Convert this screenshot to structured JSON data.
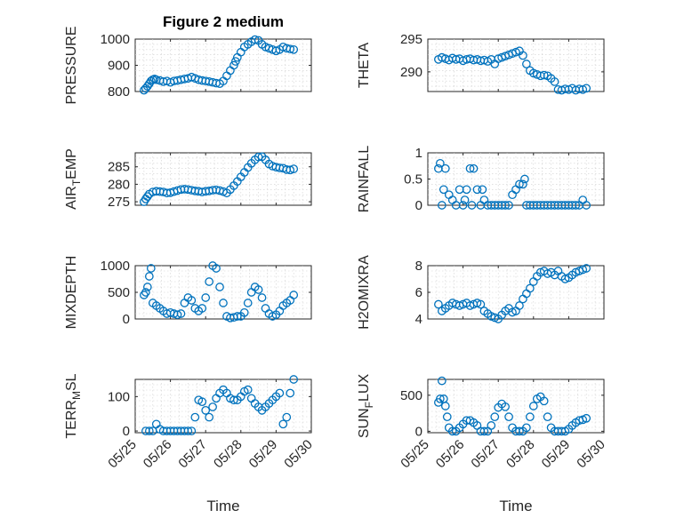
{
  "figure": {
    "title": "Figure 2 medium",
    "marker_color": "#0072bd",
    "x_ticks": [
      "05/25",
      "05/26",
      "05/27",
      "05/28",
      "05/29",
      "05/30"
    ],
    "time_label": "Time"
  },
  "chart_data": [
    {
      "type": "scatter",
      "title": "Figure 2 medium",
      "ylabel": "PRESSURE",
      "xlim": [
        0,
        5
      ],
      "ylim": [
        800,
        1000
      ],
      "yticks": [
        800,
        900,
        1000
      ],
      "grid": true,
      "x_tick_labels": false,
      "x": [
        0.25,
        0.3,
        0.35,
        0.4,
        0.45,
        0.5,
        0.55,
        0.6,
        0.7,
        0.8,
        0.9,
        1.0,
        1.1,
        1.2,
        1.3,
        1.4,
        1.5,
        1.6,
        1.7,
        1.8,
        1.9,
        2.0,
        2.1,
        2.2,
        2.3,
        2.4,
        2.5,
        2.6,
        2.7,
        2.8,
        2.85,
        2.9,
        3.0,
        3.1,
        3.2,
        3.3,
        3.4,
        3.5,
        3.6,
        3.7,
        3.8,
        3.9,
        4.0,
        4.1,
        4.2,
        4.3,
        4.4,
        4.5
      ],
      "y": [
        805,
        812,
        820,
        830,
        840,
        845,
        848,
        845,
        842,
        838,
        840,
        835,
        840,
        842,
        845,
        848,
        850,
        855,
        850,
        845,
        842,
        840,
        838,
        835,
        832,
        830,
        840,
        860,
        880,
        900,
        915,
        930,
        950,
        970,
        980,
        990,
        998,
        995,
        980,
        970,
        965,
        960,
        955,
        960,
        970,
        965,
        962,
        960
      ]
    },
    {
      "type": "scatter",
      "ylabel": "THETA",
      "xlim": [
        0,
        5
      ],
      "ylim": [
        287,
        295
      ],
      "yticks": [
        290,
        295
      ],
      "grid": true,
      "x_tick_labels": false,
      "x": [
        0.3,
        0.4,
        0.5,
        0.6,
        0.7,
        0.8,
        0.9,
        1.0,
        1.1,
        1.2,
        1.3,
        1.4,
        1.5,
        1.6,
        1.7,
        1.8,
        1.9,
        2.0,
        2.1,
        2.2,
        2.3,
        2.4,
        2.5,
        2.6,
        2.7,
        2.8,
        2.9,
        3.0,
        3.1,
        3.2,
        3.3,
        3.4,
        3.5,
        3.6,
        3.7,
        3.8,
        3.9,
        4.0,
        4.1,
        4.2,
        4.3,
        4.4,
        4.5
      ],
      "y": [
        291.9,
        292.2,
        292.0,
        291.8,
        292.1,
        291.9,
        292.0,
        291.7,
        291.9,
        292.0,
        291.8,
        291.9,
        291.7,
        291.8,
        291.6,
        291.9,
        291.2,
        292.0,
        292.2,
        292.4,
        292.6,
        292.8,
        293.0,
        293.2,
        292.5,
        291.2,
        290.2,
        289.8,
        289.6,
        289.4,
        289.5,
        289.4,
        289.0,
        288.5,
        287.3,
        287.2,
        287.4,
        287.3,
        287.5,
        287.2,
        287.4,
        287.3,
        287.5
      ]
    },
    {
      "type": "scatter",
      "ylabel": "AIR",
      "ylabel_subscript": "T",
      "ylabel_suffix": "EMP",
      "xlim": [
        0,
        5
      ],
      "ylim": [
        274,
        289
      ],
      "yticks": [
        275,
        280,
        285
      ],
      "grid": true,
      "x_tick_labels": false,
      "x": [
        0.25,
        0.3,
        0.35,
        0.4,
        0.5,
        0.6,
        0.7,
        0.8,
        0.9,
        1.0,
        1.1,
        1.2,
        1.3,
        1.4,
        1.5,
        1.6,
        1.7,
        1.8,
        1.9,
        2.0,
        2.1,
        2.2,
        2.3,
        2.4,
        2.5,
        2.6,
        2.7,
        2.8,
        2.9,
        3.0,
        3.1,
        3.2,
        3.3,
        3.4,
        3.5,
        3.6,
        3.7,
        3.8,
        3.9,
        4.0,
        4.1,
        4.2,
        4.3,
        4.4,
        4.5
      ],
      "y": [
        275.0,
        275.8,
        276.5,
        277.2,
        277.8,
        278.0,
        277.9,
        277.8,
        277.5,
        277.6,
        277.9,
        278.2,
        278.5,
        278.6,
        278.5,
        278.3,
        278.1,
        278.0,
        277.8,
        278.0,
        278.1,
        278.3,
        278.4,
        278.2,
        277.9,
        277.5,
        278.5,
        279.6,
        280.8,
        282.1,
        283.4,
        284.8,
        286.0,
        287.0,
        287.8,
        287.9,
        287.0,
        285.8,
        285.2,
        284.9,
        284.7,
        284.6,
        284.2,
        284.1,
        284.4
      ]
    },
    {
      "type": "scatter",
      "ylabel": "RAINFALL",
      "xlim": [
        0,
        5
      ],
      "ylim": [
        0,
        1
      ],
      "yticks": [
        0,
        0.5,
        1
      ],
      "grid": true,
      "x_tick_labels": false,
      "x": [
        0.3,
        0.35,
        0.4,
        0.45,
        0.5,
        0.6,
        0.7,
        0.8,
        0.9,
        1.0,
        1.05,
        1.1,
        1.2,
        1.25,
        1.3,
        1.4,
        1.5,
        1.55,
        1.6,
        1.7,
        1.8,
        1.9,
        2.0,
        2.1,
        2.2,
        2.3,
        2.4,
        2.5,
        2.6,
        2.7,
        2.75,
        2.8,
        2.9,
        3.0,
        3.1,
        3.2,
        3.3,
        3.4,
        3.5,
        3.6,
        3.7,
        3.8,
        3.9,
        4.0,
        4.1,
        4.2,
        4.3,
        4.4,
        4.5
      ],
      "y": [
        0.7,
        0.8,
        0.0,
        0.3,
        0.7,
        0.2,
        0.1,
        0.0,
        0.3,
        0.0,
        0.1,
        0.3,
        0.7,
        0.0,
        0.7,
        0.3,
        0.0,
        0.3,
        0.1,
        0.0,
        0.0,
        0.0,
        0.0,
        0.0,
        0.0,
        0.0,
        0.2,
        0.3,
        0.4,
        0.4,
        0.5,
        0.0,
        0.0,
        0.0,
        0.0,
        0.0,
        0.0,
        0.0,
        0.0,
        0.0,
        0.0,
        0.0,
        0.0,
        0.0,
        0.0,
        0.0,
        0.0,
        0.1,
        0.0
      ]
    },
    {
      "type": "scatter",
      "ylabel": "MIXDEPTH",
      "xlim": [
        0,
        5
      ],
      "ylim": [
        0,
        1000
      ],
      "yticks": [
        0,
        500,
        1000
      ],
      "grid": true,
      "x_tick_labels": false,
      "x": [
        0.25,
        0.3,
        0.35,
        0.4,
        0.45,
        0.5,
        0.6,
        0.7,
        0.8,
        0.9,
        1.0,
        1.1,
        1.2,
        1.3,
        1.4,
        1.5,
        1.6,
        1.7,
        1.8,
        1.9,
        2.0,
        2.1,
        2.2,
        2.3,
        2.4,
        2.5,
        2.6,
        2.7,
        2.8,
        2.9,
        3.0,
        3.1,
        3.2,
        3.3,
        3.4,
        3.5,
        3.6,
        3.7,
        3.8,
        3.9,
        4.0,
        4.1,
        4.2,
        4.3,
        4.4,
        4.5
      ],
      "y": [
        450,
        500,
        600,
        800,
        950,
        300,
        250,
        200,
        150,
        100,
        120,
        100,
        80,
        100,
        300,
        400,
        350,
        200,
        150,
        200,
        400,
        700,
        1000,
        950,
        600,
        300,
        50,
        20,
        30,
        50,
        50,
        120,
        300,
        500,
        600,
        550,
        400,
        200,
        100,
        50,
        80,
        150,
        250,
        300,
        350,
        450
      ]
    },
    {
      "type": "scatter",
      "ylabel": "H2OMIXRA",
      "xlim": [
        0,
        5
      ],
      "ylim": [
        4,
        8
      ],
      "yticks": [
        4,
        6,
        8
      ],
      "grid": true,
      "x_tick_labels": false,
      "x": [
        0.3,
        0.4,
        0.5,
        0.6,
        0.7,
        0.8,
        0.9,
        1.0,
        1.1,
        1.2,
        1.3,
        1.4,
        1.5,
        1.6,
        1.7,
        1.8,
        1.9,
        2.0,
        2.1,
        2.2,
        2.3,
        2.4,
        2.5,
        2.6,
        2.7,
        2.8,
        2.9,
        3.0,
        3.1,
        3.2,
        3.3,
        3.4,
        3.5,
        3.6,
        3.7,
        3.8,
        3.9,
        4.0,
        4.1,
        4.2,
        4.3,
        4.4,
        4.5
      ],
      "y": [
        5.1,
        4.6,
        4.8,
        5.0,
        5.2,
        5.1,
        5.0,
        5.1,
        5.2,
        5.0,
        5.1,
        5.2,
        5.1,
        4.6,
        4.4,
        4.2,
        4.1,
        4.0,
        4.3,
        4.6,
        4.8,
        4.5,
        4.6,
        5.0,
        5.5,
        5.9,
        6.3,
        6.8,
        7.2,
        7.5,
        7.6,
        7.4,
        7.5,
        7.3,
        7.6,
        7.2,
        7.0,
        7.1,
        7.3,
        7.5,
        7.6,
        7.7,
        7.8
      ]
    },
    {
      "type": "scatter",
      "ylabel": "TERR",
      "ylabel_subscript": "M",
      "ylabel_suffix": "SL",
      "xlim": [
        0,
        5
      ],
      "ylim": [
        -5,
        150
      ],
      "yticks": [
        0,
        100
      ],
      "grid": true,
      "x_tick_labels": true,
      "xlabel": "Time",
      "x": [
        0.3,
        0.4,
        0.5,
        0.6,
        0.7,
        0.8,
        0.9,
        1.0,
        1.1,
        1.2,
        1.3,
        1.4,
        1.5,
        1.6,
        1.7,
        1.8,
        1.9,
        2.0,
        2.1,
        2.2,
        2.3,
        2.4,
        2.5,
        2.6,
        2.7,
        2.8,
        2.9,
        3.0,
        3.1,
        3.2,
        3.3,
        3.4,
        3.5,
        3.6,
        3.7,
        3.8,
        3.9,
        4.0,
        4.1,
        4.2,
        4.3,
        4.4,
        4.5
      ],
      "y": [
        0,
        0,
        0,
        20,
        5,
        0,
        0,
        0,
        0,
        0,
        0,
        0,
        0,
        0,
        40,
        90,
        85,
        60,
        40,
        70,
        95,
        110,
        120,
        110,
        95,
        90,
        90,
        100,
        115,
        120,
        95,
        80,
        70,
        60,
        70,
        80,
        90,
        100,
        110,
        20,
        40,
        110,
        150
      ]
    },
    {
      "type": "scatter",
      "ylabel": "SUN",
      "ylabel_subscript": "F",
      "ylabel_suffix": "LUX",
      "xlim": [
        0,
        5
      ],
      "ylim": [
        -20,
        720
      ],
      "yticks": [
        0,
        500
      ],
      "grid": true,
      "x_tick_labels": true,
      "xlabel": "Time",
      "x": [
        0.3,
        0.35,
        0.4,
        0.45,
        0.5,
        0.55,
        0.6,
        0.7,
        0.8,
        0.9,
        1.0,
        1.1,
        1.2,
        1.3,
        1.4,
        1.5,
        1.6,
        1.7,
        1.8,
        1.9,
        2.0,
        2.1,
        2.2,
        2.3,
        2.4,
        2.5,
        2.6,
        2.7,
        2.8,
        2.9,
        3.0,
        3.1,
        3.2,
        3.3,
        3.4,
        3.5,
        3.6,
        3.7,
        3.8,
        3.9,
        4.0,
        4.1,
        4.2,
        4.3,
        4.4,
        4.5
      ],
      "y": [
        400,
        450,
        700,
        450,
        350,
        200,
        50,
        0,
        0,
        50,
        100,
        150,
        150,
        120,
        80,
        0,
        0,
        0,
        80,
        200,
        330,
        380,
        340,
        200,
        50,
        0,
        0,
        0,
        50,
        200,
        350,
        450,
        480,
        420,
        200,
        50,
        0,
        0,
        0,
        0,
        30,
        80,
        120,
        150,
        160,
        180
      ]
    }
  ]
}
